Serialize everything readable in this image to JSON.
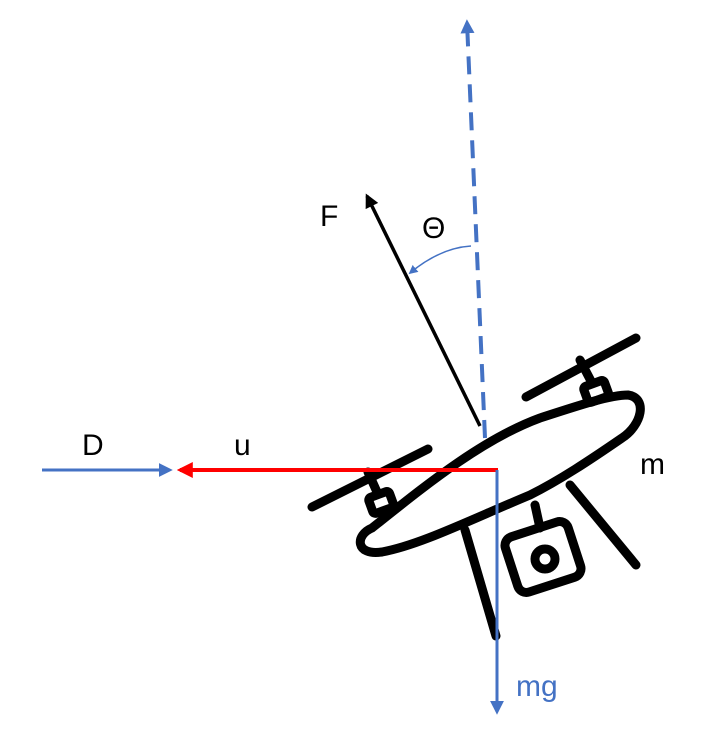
{
  "labels": {
    "force": "F",
    "angle": "Θ",
    "drag": "D",
    "velocity": "u",
    "mass": "m",
    "weight": "mg"
  },
  "colors": {
    "black": "#000000",
    "blue": "#4472C4",
    "red": "#FF0000",
    "background": "#FFFFFF"
  },
  "icons": {
    "drone": "quadcopter-drone-icon"
  }
}
